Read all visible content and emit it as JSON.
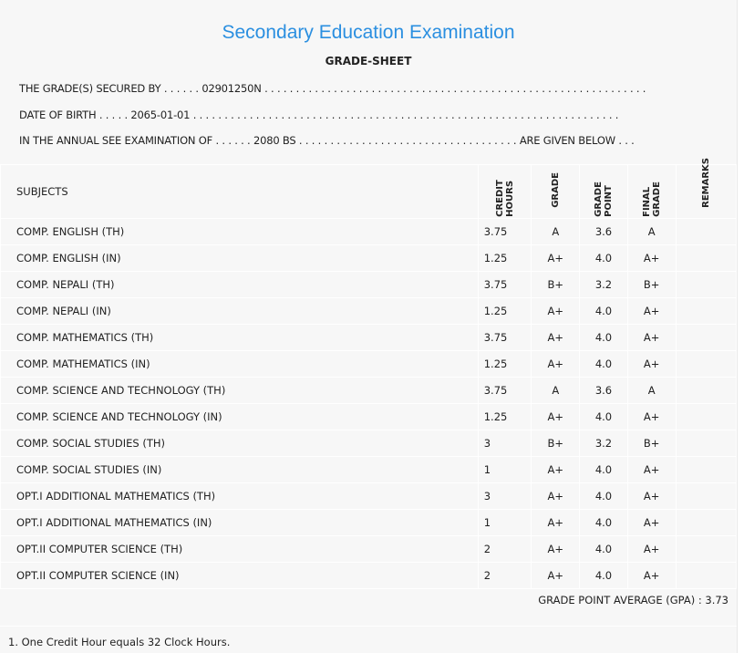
{
  "title": "Secondary Education Examination",
  "subtitle": "GRADE-SHEET",
  "lines": {
    "secured_by": "THE GRADE(S) SECURED BY . . . . . . 02901250N . . . . . . . . . . . . . . . . . . . . . . . . . . . . . . . . . . . . . . . . . . . . . . . . . . . . . . . . . . . . .",
    "dob": "DATE OF BIRTH . . . . . 2065-01-01 . . . . . . . . . . . . . . . . . . . . . . . . . . . . . . . . . . . . . . . . . . . . . . . . . . . . . . . . . . . . . . . . . . . .",
    "exam": "IN THE ANNUAL SEE EXAMINATION OF . . . . . . 2080 BS . . . . . . . . . . . . . . . . . . . . . . . . . . . . . . . . . . . ARE GIVEN BELOW . . ."
  },
  "headers": {
    "subjects": "SUBJECTS",
    "credit": "CREDIT HOURS",
    "grade": "GRADE",
    "grade_point": "GRADE POINT",
    "final": "FINAL GRADE",
    "remarks": "REMARKS"
  },
  "rows": [
    [
      "COMP. ENGLISH (TH)",
      "3.75",
      "A",
      "3.6",
      "A"
    ],
    [
      "COMP. ENGLISH (IN)",
      "1.25",
      "A+",
      "4.0",
      "A+"
    ],
    [
      "COMP. NEPALI (TH)",
      "3.75",
      "B+",
      "3.2",
      "B+"
    ],
    [
      "COMP. NEPALI (IN)",
      "1.25",
      "A+",
      "4.0",
      "A+"
    ],
    [
      "COMP. MATHEMATICS (TH)",
      "3.75",
      "A+",
      "4.0",
      "A+"
    ],
    [
      "COMP. MATHEMATICS (IN)",
      "1.25",
      "A+",
      "4.0",
      "A+"
    ],
    [
      "COMP. SCIENCE AND TECHNOLOGY (TH)",
      "3.75",
      "A",
      "3.6",
      "A"
    ],
    [
      "COMP. SCIENCE AND TECHNOLOGY (IN)",
      "1.25",
      "A+",
      "4.0",
      "A+"
    ],
    [
      "COMP. SOCIAL STUDIES (TH)",
      "3",
      "B+",
      "3.2",
      "B+"
    ],
    [
      "COMP. SOCIAL STUDIES (IN)",
      "1",
      "A+",
      "4.0",
      "A+"
    ],
    [
      "OPT.I ADDITIONAL MATHEMATICS (TH)",
      "3",
      "A+",
      "4.0",
      "A+"
    ],
    [
      "OPT.I ADDITIONAL MATHEMATICS (IN)",
      "1",
      "A+",
      "4.0",
      "A+"
    ],
    [
      "OPT.II COMPUTER SCIENCE (TH)",
      "2",
      "A+",
      "4.0",
      "A+"
    ],
    [
      "OPT.II COMPUTER SCIENCE (IN)",
      "2",
      "A+",
      "4.0",
      "A+"
    ]
  ],
  "gpa": "GRADE POINT AVERAGE (GPA) : 3.73",
  "footnote": "1. One Credit Hour equals 32 Clock Hours."
}
